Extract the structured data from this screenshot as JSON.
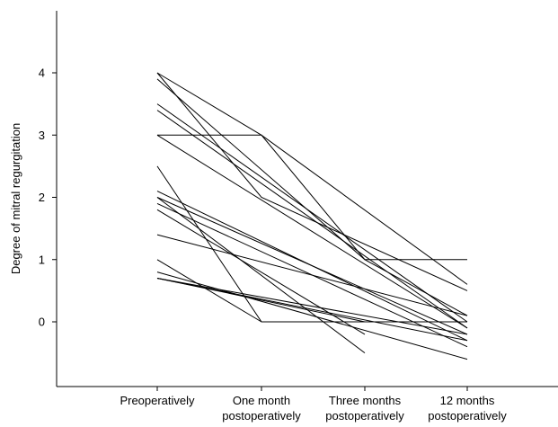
{
  "chart_data": {
    "type": "line",
    "title": "",
    "ylabel": "Degree of mitral regurgitation",
    "xlabel": "",
    "categories": [
      [
        "Preoperatively"
      ],
      [
        "One month",
        "postoperatively"
      ],
      [
        "Three months",
        "postoperatively"
      ],
      [
        "12 months",
        "postoperatively"
      ]
    ],
    "yticks": [
      0,
      1,
      2,
      3,
      4
    ],
    "ylim": [
      -1,
      5
    ],
    "grid": false,
    "line_color": "#000000",
    "series": [
      {
        "values": [
          4.0,
          3.0,
          null,
          0.6
        ]
      },
      {
        "values": [
          4.0,
          2.0,
          null,
          0.5
        ]
      },
      {
        "values": [
          3.9,
          null,
          1.0,
          0.1
        ]
      },
      {
        "values": [
          3.5,
          null,
          null,
          0.0
        ]
      },
      {
        "values": [
          3.4,
          null,
          null,
          -0.1
        ]
      },
      {
        "values": [
          3.0,
          3.0,
          1.0,
          1.0
        ]
      },
      {
        "values": [
          3.0,
          null,
          null,
          -0.1
        ]
      },
      {
        "values": [
          2.5,
          0.0,
          0.0,
          0.0
        ]
      },
      {
        "values": [
          2.1,
          null,
          null,
          -0.3
        ]
      },
      {
        "values": [
          2.0,
          null,
          null,
          -0.2
        ]
      },
      {
        "values": [
          2.0,
          null,
          -0.5,
          null
        ]
      },
      {
        "values": [
          1.9,
          null,
          null,
          -0.4
        ]
      },
      {
        "values": [
          1.8,
          null,
          -0.2,
          null
        ]
      },
      {
        "values": [
          1.4,
          null,
          null,
          0.1
        ]
      },
      {
        "values": [
          1.0,
          0.0,
          null,
          null
        ]
      },
      {
        "values": [
          0.8,
          null,
          null,
          -0.6
        ]
      },
      {
        "values": [
          0.7,
          null,
          0.0,
          null
        ]
      },
      {
        "values": [
          0.7,
          null,
          null,
          -0.3
        ]
      },
      {
        "values": [
          0.7,
          null,
          null,
          -0.2
        ]
      }
    ]
  }
}
